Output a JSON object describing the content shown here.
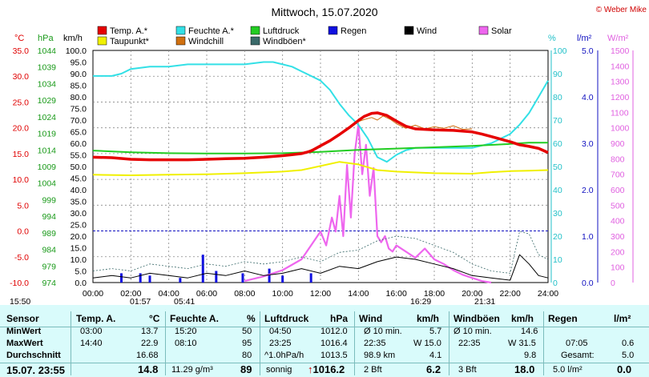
{
  "title": "Mittwoch, 15.07.2020",
  "copyright": "© Weber Mike",
  "legend": [
    {
      "name": "Temp. A.*",
      "color": "#e60000"
    },
    {
      "name": "Feuchte A.*",
      "color": "#33e0e6"
    },
    {
      "name": "Luftdruck",
      "color": "#22cc22"
    },
    {
      "name": "Regen",
      "color": "#1010e0"
    },
    {
      "name": "Wind",
      "color": "#000000"
    },
    {
      "name": "Solar",
      "color": "#ee66ee"
    },
    {
      "name": "Taupunkt*",
      "color": "#f0f000"
    },
    {
      "name": "Windchill",
      "color": "#d07010"
    },
    {
      "name": "Windböen*",
      "color": "#3a6a6a"
    }
  ],
  "axis_units": {
    "temp": "°C",
    "pressure": "hPa",
    "wind": "km/h",
    "humidity": "%",
    "rain": "l/m²",
    "solar": "W/m²"
  },
  "chart_data": {
    "type": "line",
    "x_unit": "hour",
    "x_ticks": [
      "00:00",
      "02:00",
      "04:00",
      "06:00",
      "08:00",
      "10:00",
      "12:00",
      "14:00",
      "16:00",
      "18:00",
      "20:00",
      "22:00",
      "24:00"
    ],
    "axes": {
      "temp": {
        "range": [
          -10,
          35
        ],
        "ticks": [
          "35.0",
          "30.0",
          "25.0",
          "20.0",
          "15.0",
          "10.0",
          "5.0",
          "0.0",
          "-5.0",
          "-10.0"
        ]
      },
      "pressure": {
        "range": [
          974,
          1044
        ],
        "ticks": [
          "1044",
          "1039",
          "1034",
          "1029",
          "1024",
          "1019",
          "1014",
          "1009",
          "1004",
          "999",
          "994",
          "989",
          "984",
          "979",
          "974"
        ]
      },
      "wind": {
        "range": [
          0,
          100
        ],
        "ticks": [
          "100.0",
          "95.0",
          "90.0",
          "85.0",
          "80.0",
          "75.0",
          "70.0",
          "65.0",
          "60.0",
          "55.0",
          "50.0",
          "45.0",
          "40.0",
          "35.0",
          "30.0",
          "25.0",
          "20.0",
          "15.0",
          "10.0",
          "5.0",
          "0.0"
        ]
      },
      "humidity": {
        "range": [
          0,
          100
        ],
        "ticks": [
          "100",
          "90",
          "80",
          "70",
          "60",
          "50",
          "40",
          "30",
          "20",
          "10",
          "0"
        ]
      },
      "rain": {
        "range": [
          0,
          5
        ],
        "ticks": [
          "5.0",
          "4.0",
          "3.0",
          "2.0",
          "1.0",
          "0.0"
        ]
      },
      "solar": {
        "range": [
          0,
          1500
        ],
        "ticks": [
          "1500",
          "1400",
          "1300",
          "1200",
          "1100",
          "1000",
          "900",
          "800",
          "700",
          "600",
          "500",
          "400",
          "300",
          "200",
          "100",
          "0"
        ]
      }
    },
    "series": [
      {
        "name": "Temp. A.*",
        "axis": "temp",
        "x": [
          0,
          1,
          2,
          3,
          4,
          5,
          6,
          7,
          8,
          9,
          10,
          10.5,
          11,
          11.5,
          12,
          12.5,
          13,
          13.5,
          14,
          14.3,
          14.7,
          15,
          15.5,
          16,
          16.5,
          17,
          18,
          19,
          20,
          20.5,
          21,
          21.5,
          22,
          22.5,
          23,
          23.5,
          24
        ],
        "y": [
          14.3,
          14.2,
          13.9,
          13.8,
          13.8,
          13.8,
          13.9,
          14.0,
          14.1,
          14.3,
          14.6,
          14.8,
          15.0,
          15.5,
          16.5,
          17.5,
          18.7,
          20.0,
          21.4,
          22.2,
          22.8,
          22.9,
          22.4,
          21.3,
          20.3,
          19.8,
          19.6,
          19.5,
          19.2,
          18.8,
          18.3,
          17.8,
          17.3,
          16.7,
          16.4,
          16.0,
          15.2
        ]
      },
      {
        "name": "Feuchte A.*",
        "axis": "humidity",
        "x": [
          0,
          1,
          1.5,
          2,
          3,
          4,
          5,
          6,
          7,
          8,
          9,
          9.5,
          10,
          10.5,
          11,
          11.5,
          12,
          12.5,
          13,
          13.5,
          14,
          14.5,
          15,
          15.5,
          16,
          16.5,
          17,
          18,
          19,
          20,
          21,
          22,
          22.5,
          23,
          23.5,
          24
        ],
        "y": [
          89,
          89,
          90,
          92,
          93,
          93,
          94,
          94,
          94,
          94,
          95,
          95,
          94,
          93,
          91,
          89,
          87,
          83,
          77,
          72,
          68,
          62,
          54,
          52,
          55,
          57,
          58,
          58,
          58,
          58,
          60,
          64,
          68,
          73,
          80,
          87
        ]
      },
      {
        "name": "Luftdruck",
        "axis": "pressure",
        "x": [
          0,
          2,
          4,
          6,
          8,
          10,
          12,
          14,
          16,
          18,
          20,
          22,
          23,
          24
        ],
        "y": [
          1013.8,
          1013.3,
          1013.0,
          1012.9,
          1012.9,
          1013.0,
          1013.4,
          1014.0,
          1014.4,
          1014.8,
          1015.2,
          1015.8,
          1016.2,
          1016.2
        ]
      },
      {
        "name": "Taupunkt*",
        "axis": "temp",
        "x": [
          0,
          2,
          4,
          6,
          8,
          10,
          11,
          12,
          13,
          14,
          15,
          16,
          18,
          20,
          21,
          22,
          23,
          24
        ],
        "y": [
          10.9,
          10.8,
          10.9,
          11.0,
          11.2,
          11.5,
          11.8,
          12.6,
          13.4,
          12.9,
          11.8,
          11.5,
          11.2,
          11.1,
          11.4,
          11.6,
          11.7,
          11.8
        ]
      },
      {
        "name": "Windchill",
        "axis": "temp",
        "x": [
          0,
          4,
          8,
          10,
          11,
          12,
          12.5,
          13,
          13.5,
          14,
          14.3,
          14.7,
          15,
          15.3,
          15.7,
          16,
          16.5,
          17,
          17.5,
          18,
          18.5,
          19,
          19.5,
          20
        ],
        "y": [
          14.3,
          13.8,
          14.1,
          14.6,
          15.0,
          16.5,
          17.5,
          18.7,
          20.0,
          21.2,
          21.6,
          22.0,
          21.5,
          22.3,
          21.6,
          20.8,
          19.9,
          20.5,
          19.8,
          20.2,
          19.9,
          20.4,
          19.7,
          19.8
        ]
      },
      {
        "name": "Solar",
        "axis": "solar",
        "x": [
          8,
          9,
          10,
          11,
          11.5,
          12,
          12.3,
          12.6,
          12.8,
          13,
          13.2,
          13.4,
          13.6,
          13.8,
          14,
          14.2,
          14.4,
          14.6,
          14.8,
          15,
          15.2,
          15.4,
          15.6,
          15.8,
          16,
          16.5,
          17,
          17.5,
          18,
          18.5,
          19,
          19.5,
          20,
          20.5,
          21
        ],
        "y": [
          10,
          40,
          80,
          150,
          240,
          330,
          240,
          420,
          330,
          560,
          300,
          760,
          420,
          830,
          1020,
          700,
          890,
          560,
          740,
          300,
          260,
          300,
          220,
          200,
          240,
          200,
          160,
          220,
          150,
          120,
          80,
          50,
          30,
          10,
          0
        ]
      },
      {
        "name": "Wind",
        "axis": "wind",
        "x": [
          0,
          1,
          2,
          3,
          4,
          5,
          6,
          7,
          8,
          9,
          10,
          11,
          12,
          13,
          14,
          15,
          16,
          17,
          18,
          19,
          20,
          21,
          22,
          22.5,
          23,
          23.5,
          24
        ],
        "y": [
          2,
          3,
          2,
          4,
          3,
          2,
          4,
          3,
          5,
          3,
          4,
          6,
          4,
          7,
          6,
          9,
          11,
          10,
          8,
          6,
          3,
          2,
          1,
          12,
          8,
          3,
          2
        ]
      },
      {
        "name": "Windböen*",
        "axis": "wind",
        "x": [
          0,
          1,
          2,
          3,
          4,
          5,
          6,
          7,
          8,
          9,
          10,
          11,
          12,
          13,
          14,
          15,
          16,
          17,
          18,
          19,
          20,
          21,
          22,
          22.5,
          23,
          23.5,
          24
        ],
        "y": [
          5,
          6,
          5,
          8,
          7,
          6,
          8,
          7,
          9,
          8,
          9,
          11,
          9,
          13,
          14,
          18,
          20,
          19,
          16,
          13,
          8,
          5,
          4,
          22,
          21,
          12,
          10
        ]
      }
    ],
    "rain_bars": {
      "axis": "rain",
      "x": [
        1.5,
        2.5,
        3.0,
        4.6,
        5.8,
        6.5,
        7.9,
        9.3,
        10.0,
        11.5
      ],
      "values": [
        0.2,
        0.2,
        0.15,
        0.1,
        0.6,
        0.25,
        0.2,
        0.3,
        0.15,
        0.2
      ]
    },
    "markers": [
      "15:50",
      "01:57",
      "05:41",
      "16:29",
      "21:31"
    ]
  },
  "table": {
    "headers": {
      "sensor": "Sensor",
      "temp": "Temp. A.",
      "temp_unit": "°C",
      "hum": "Feuchte A.",
      "hum_unit": "%",
      "press": "Luftdruck",
      "press_unit": "hPa",
      "wind": "Wind",
      "wind_unit": "km/h",
      "gust": "Windböen",
      "gust_unit": "km/h",
      "rain": "Regen",
      "rain_unit": "l/m²"
    },
    "rows": {
      "min_label": "MinWert",
      "max_label": "MaxWert",
      "avg_label": "Durchschnitt",
      "now_label": "15.07. 23:55"
    },
    "temp": {
      "min_time": "03:00",
      "min": "13.7",
      "max_time": "14:40",
      "max": "22.9",
      "avg": "16.68",
      "now": "14.8"
    },
    "hum": {
      "min_time": "15:20",
      "min": "50",
      "max_time": "08:10",
      "max": "95",
      "avg": "80",
      "abs": "11.29 g/m³",
      "now": "89"
    },
    "press": {
      "min_time": "04:50",
      "min": "1012.0",
      "max_time": "23:25",
      "max": "1016.4",
      "trend_label": "^1.0hPa/h",
      "trend": "1013.5",
      "state": "sonnig",
      "now": "1016.2"
    },
    "wind": {
      "r1_label": "Ø 10 min.",
      "r1": "5.7",
      "r2_time": "22:35",
      "r2": "W 15.0",
      "r3_label": "98.9 km",
      "r3": "4.1",
      "bft": "2 Bft",
      "now": "6.2"
    },
    "gust": {
      "r1_label": "Ø 10 min.",
      "r1": "14.6",
      "r2_time": "22:35",
      "r2": "W 31.5",
      "r3": "9.8",
      "bft": "3 Bft",
      "now": "18.0"
    },
    "rain": {
      "r2_time": "07:05",
      "r2": "0.6",
      "r3_label": "Gesamt:",
      "r3": "5.0",
      "r4_label": "5.0 l/m²",
      "now": "0.0"
    }
  }
}
